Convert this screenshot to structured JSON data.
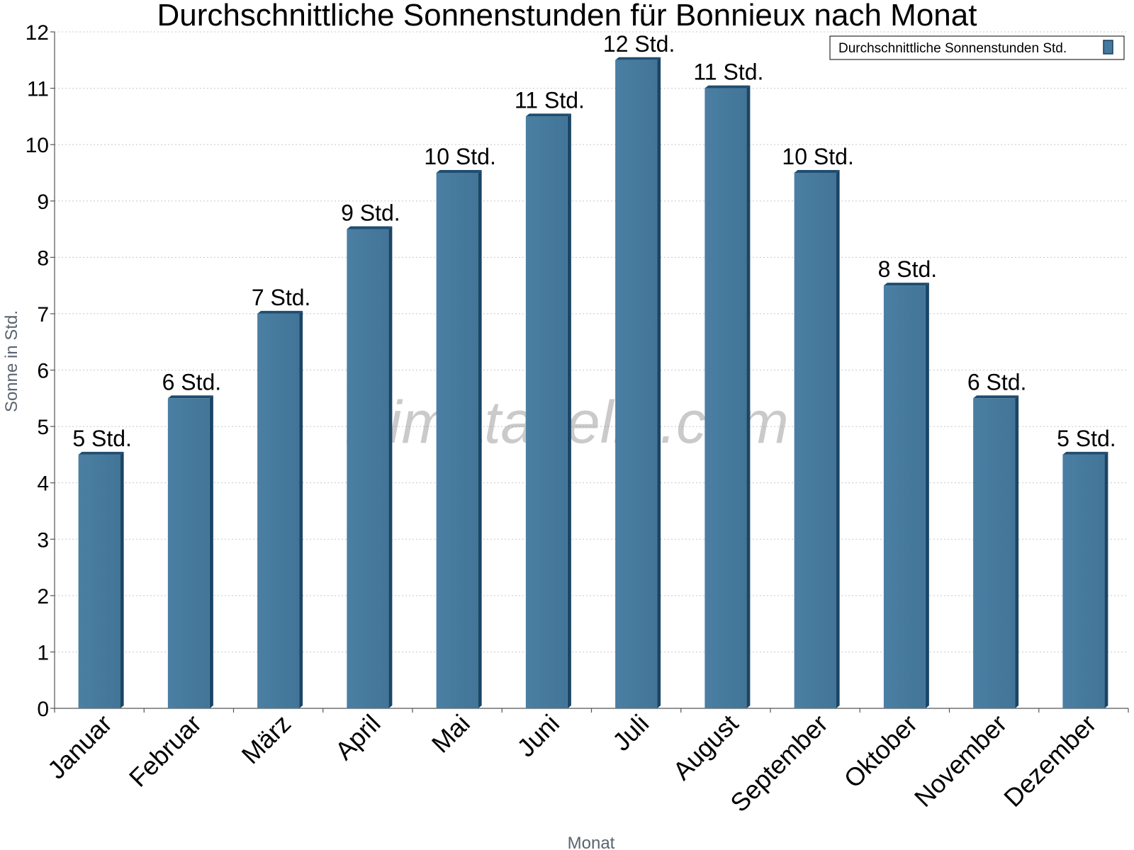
{
  "chart_data": {
    "type": "bar",
    "title": "Durchschnittliche Sonnenstunden für Bonnieux nach Monat",
    "xlabel": "Monat",
    "ylabel": "Sonne in Std.",
    "ylim": [
      0,
      12
    ],
    "yticks": [
      0,
      1,
      2,
      3,
      4,
      5,
      6,
      7,
      8,
      9,
      10,
      11,
      12
    ],
    "grid": true,
    "legend_position": "top-right",
    "categories": [
      "Januar",
      "Februar",
      "März",
      "April",
      "Mai",
      "Juni",
      "Juli",
      "August",
      "September",
      "Oktober",
      "November",
      "Dezember"
    ],
    "series": [
      {
        "name": "Durchschnittliche Sonnenstunden Std.",
        "color": "#45799d",
        "values": [
          4.5,
          5.5,
          7.0,
          8.5,
          9.5,
          10.5,
          11.5,
          11.0,
          9.5,
          7.5,
          5.5,
          4.5
        ],
        "labels": [
          "5 Std.",
          "6 Std.",
          "7 Std.",
          "9 Std.",
          "10 Std.",
          "11 Std.",
          "12 Std.",
          "11 Std.",
          "10 Std.",
          "8 Std.",
          "6 Std.",
          "5 Std."
        ]
      }
    ],
    "watermark": "klimatabelle.com"
  }
}
